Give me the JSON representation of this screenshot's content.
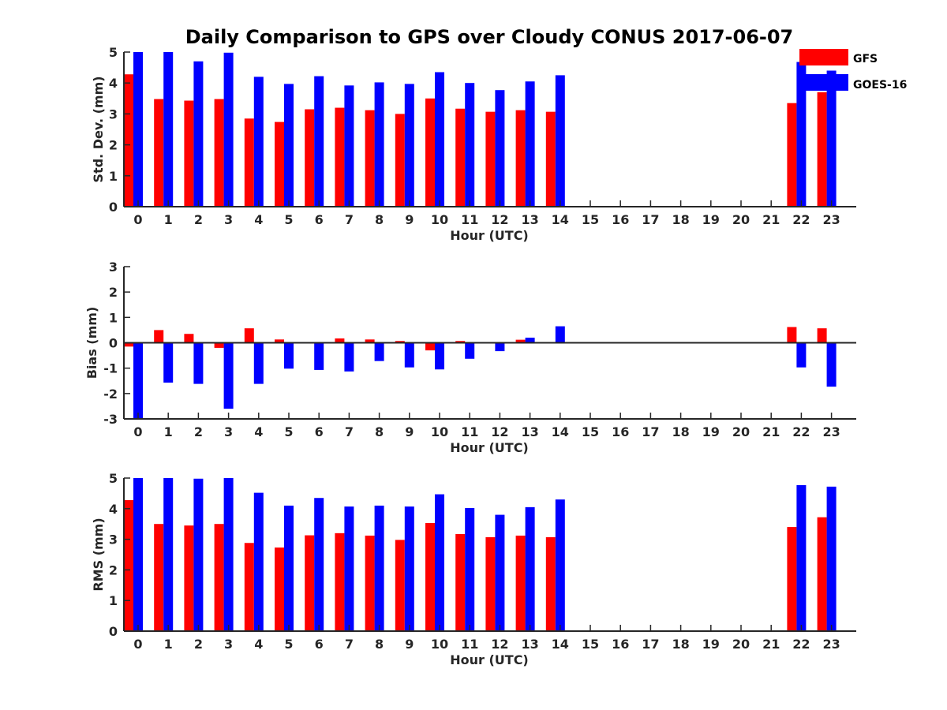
{
  "title": "Daily Comparison to GPS over Cloudy CONUS 2017-06-07",
  "legend": {
    "placement": "top-right",
    "items": [
      {
        "name": "GFS",
        "color": "#ff0000"
      },
      {
        "name": "GOES-16",
        "color": "#0000ff"
      }
    ]
  },
  "chart_data": [
    {
      "type": "bar",
      "xlabel": "Hour (UTC)",
      "ylabel": "Std. Dev. (mm)",
      "ylim": [
        0,
        5
      ],
      "yticks": [
        0,
        1,
        2,
        3,
        4,
        5
      ],
      "categories": [
        "0",
        "1",
        "2",
        "3",
        "4",
        "5",
        "6",
        "7",
        "8",
        "9",
        "10",
        "11",
        "12",
        "13",
        "14",
        "15",
        "16",
        "17",
        "18",
        "19",
        "20",
        "21",
        "22",
        "23"
      ],
      "series": [
        {
          "name": "GFS",
          "color": "#ff0000",
          "values": [
            4.28,
            3.48,
            3.43,
            3.48,
            2.85,
            2.74,
            3.15,
            3.2,
            3.12,
            3.0,
            3.5,
            3.17,
            3.07,
            3.12,
            3.07,
            null,
            null,
            null,
            null,
            null,
            null,
            null,
            3.35,
            3.7
          ]
        },
        {
          "name": "GOES-16",
          "color": "#0000ff",
          "values": [
            5.0,
            5.0,
            4.7,
            4.98,
            4.2,
            3.97,
            4.22,
            3.92,
            4.02,
            3.97,
            4.35,
            4.0,
            3.77,
            4.05,
            4.25,
            null,
            null,
            null,
            null,
            null,
            null,
            null,
            4.68,
            4.4
          ]
        }
      ]
    },
    {
      "type": "bar",
      "xlabel": "Hour (UTC)",
      "ylabel": "Bias (mm)",
      "ylim": [
        -3,
        3
      ],
      "yticks": [
        -3,
        -2,
        -1,
        0,
        1,
        2,
        3
      ],
      "categories": [
        "0",
        "1",
        "2",
        "3",
        "4",
        "5",
        "6",
        "7",
        "8",
        "9",
        "10",
        "11",
        "12",
        "13",
        "14",
        "15",
        "16",
        "17",
        "18",
        "19",
        "20",
        "21",
        "22",
        "23"
      ],
      "series": [
        {
          "name": "GFS",
          "color": "#ff0000",
          "values": [
            -0.15,
            0.5,
            0.35,
            -0.2,
            0.57,
            0.13,
            -0.03,
            0.17,
            0.13,
            0.07,
            -0.3,
            0.07,
            0.0,
            0.12,
            0.0,
            null,
            null,
            null,
            null,
            null,
            null,
            null,
            0.62,
            0.57
          ]
        },
        {
          "name": "GOES-16",
          "color": "#0000ff",
          "values": [
            -3.0,
            -1.57,
            -1.62,
            -2.6,
            -1.62,
            -1.02,
            -1.07,
            -1.13,
            -0.72,
            -0.97,
            -1.05,
            -0.63,
            -0.33,
            0.2,
            0.65,
            null,
            null,
            null,
            null,
            null,
            null,
            null,
            -0.97,
            -1.73
          ]
        }
      ]
    },
    {
      "type": "bar",
      "xlabel": "Hour (UTC)",
      "ylabel": "RMS (mm)",
      "ylim": [
        0,
        5
      ],
      "yticks": [
        0,
        1,
        2,
        3,
        4,
        5
      ],
      "categories": [
        "0",
        "1",
        "2",
        "3",
        "4",
        "5",
        "6",
        "7",
        "8",
        "9",
        "10",
        "11",
        "12",
        "13",
        "14",
        "15",
        "16",
        "17",
        "18",
        "19",
        "20",
        "21",
        "22",
        "23"
      ],
      "series": [
        {
          "name": "GFS",
          "color": "#ff0000",
          "values": [
            4.28,
            3.5,
            3.45,
            3.5,
            2.88,
            2.73,
            3.13,
            3.2,
            3.12,
            2.98,
            3.53,
            3.17,
            3.07,
            3.12,
            3.07,
            null,
            null,
            null,
            null,
            null,
            null,
            null,
            3.4,
            3.72
          ]
        },
        {
          "name": "GOES-16",
          "color": "#0000ff",
          "values": [
            5.0,
            5.0,
            4.98,
            5.0,
            4.52,
            4.1,
            4.35,
            4.07,
            4.1,
            4.07,
            4.47,
            4.02,
            3.8,
            4.05,
            4.3,
            null,
            null,
            null,
            null,
            null,
            null,
            null,
            4.77,
            4.72
          ]
        }
      ]
    }
  ]
}
